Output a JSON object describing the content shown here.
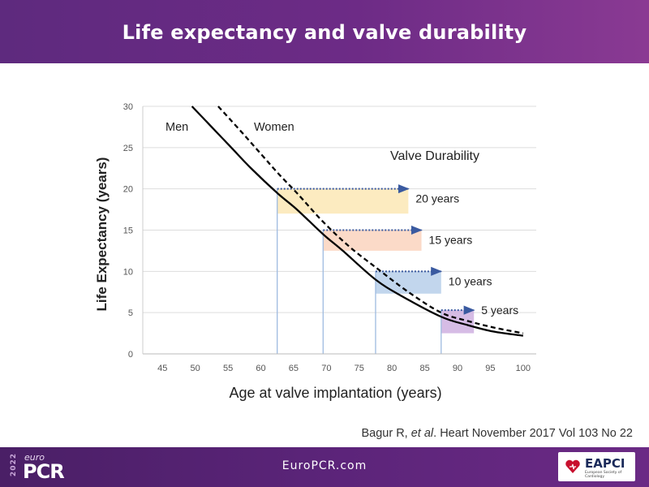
{
  "slide": {
    "title": "Life expectancy and valve durability",
    "citation_author": "Bagur R, ",
    "citation_etal": "et al",
    "citation_rest": ". Heart November 2017 Vol 103 No 22"
  },
  "footer": {
    "site": "EuroPCR.com",
    "logo_year": "2022",
    "logo_euro": "euro",
    "logo_pcr": "PCR",
    "partner_name": "EAPCI",
    "partner_sub": "European Society of Cardiology"
  },
  "colors": {
    "header": "#6d2b86",
    "curve": "#000000",
    "guide_line": "#9fbbe0",
    "arrow": "#3a5aa0",
    "band_20": "#fbe7b5",
    "band_15": "#fad4be",
    "band_10": "#b7cfea",
    "band_5": "#cfb0e0"
  },
  "chart_data": {
    "type": "line",
    "xlabel": "Age at valve implantation (years)",
    "ylabel": "Life Expectancy (years)",
    "xlim": [
      42,
      102
    ],
    "ylim": [
      0,
      30
    ],
    "x_ticks": [
      45,
      50,
      55,
      60,
      65,
      70,
      75,
      80,
      85,
      90,
      95,
      100
    ],
    "y_ticks": [
      0,
      5,
      10,
      15,
      20,
      25,
      30
    ],
    "grid": "horizontal",
    "series": [
      {
        "name": "Men",
        "style": "solid",
        "x": [
          49.5,
          52.5,
          55.5,
          58.5,
          62.5,
          65.5,
          69.5,
          72.5,
          77.5,
          81.5,
          87.5,
          91.5,
          95.5,
          100
        ],
        "y": [
          30,
          27.5,
          25,
          22.5,
          19.5,
          17.5,
          14.5,
          12.5,
          9,
          7,
          4.5,
          3.5,
          2.7,
          2.2
        ]
      },
      {
        "name": "Women",
        "style": "dashed",
        "x": [
          53.5,
          57.5,
          62.5,
          65.5,
          69.5,
          73.5,
          77.5,
          82.5,
          87.5,
          91.5,
          95.5,
          100
        ],
        "y": [
          30,
          26.5,
          22,
          19.5,
          16,
          13,
          10.5,
          7.5,
          5,
          4,
          3.2,
          2.5
        ]
      }
    ],
    "annotations": {
      "men_label": "Men",
      "women_label": "Women",
      "durability_title": "Valve Durability",
      "durability": [
        {
          "label": "20 years",
          "age": 62.5,
          "to_age": 82.5,
          "y_top": 20,
          "y_bottom": 17
        },
        {
          "label": "15 years",
          "age": 69.5,
          "to_age": 84.5,
          "y_top": 15,
          "y_bottom": 12.5
        },
        {
          "label": "10 years",
          "age": 77.5,
          "to_age": 87.5,
          "y_top": 10,
          "y_bottom": 7.3
        },
        {
          "label": "5 years",
          "age": 87.5,
          "to_age": 92.5,
          "y_top": 5.3,
          "y_bottom": 2.5
        }
      ]
    }
  }
}
